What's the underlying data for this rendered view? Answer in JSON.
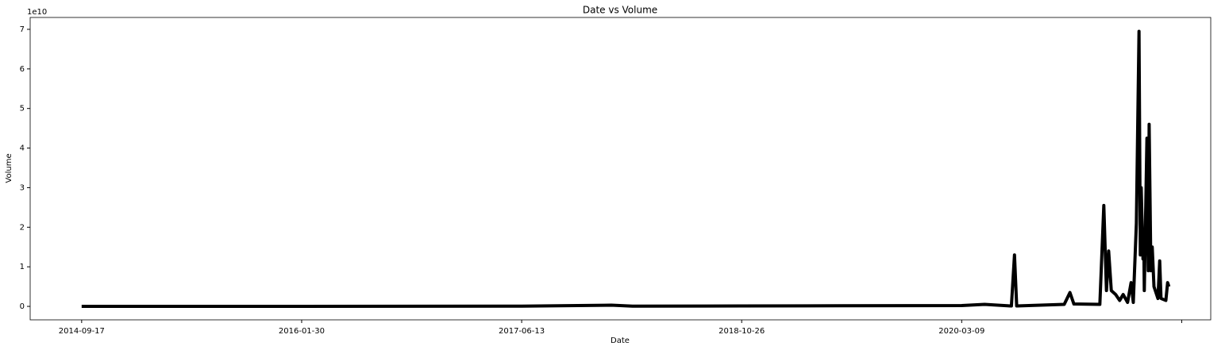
{
  "chart_data": {
    "type": "line",
    "title": "Date vs Volume",
    "xlabel": "Date",
    "ylabel": "Volume",
    "y_offset_label": "1e10",
    "x": [
      "2014-09-17",
      "2016-01-30",
      "2017-06-13",
      "2018-01-03",
      "2018-02-20",
      "2018-10-26",
      "2019-06-01",
      "2020-03-09",
      "2020-04-30",
      "2020-06-30",
      "2020-07-07",
      "2020-07-12",
      "2020-10-28",
      "2020-11-10",
      "2020-11-19",
      "2021-01-17",
      "2021-01-26",
      "2021-02-01",
      "2021-02-06",
      "2021-02-12",
      "2021-02-22",
      "2021-03-03",
      "2021-03-11",
      "2021-03-21",
      "2021-03-29",
      "2021-04-03",
      "2021-04-10",
      "2021-04-16",
      "2021-04-19",
      "2021-04-21",
      "2021-04-25",
      "2021-04-27",
      "2021-04-28",
      "2021-05-04",
      "2021-05-07",
      "2021-05-09",
      "2021-05-13",
      "2021-05-16",
      "2021-05-20",
      "2021-05-29",
      "2021-06-02",
      "2021-06-05",
      "2021-06-16",
      "2021-06-20",
      "2021-06-23"
    ],
    "series": [
      {
        "name": "Volume",
        "color": "#000000",
        "values": [
          10000000,
          20000000,
          50000000,
          300000000,
          50000000,
          100000000,
          150000000,
          200000000,
          500000000,
          100000000,
          13000000000,
          100000000,
          500000000,
          3500000000,
          600000000,
          500000000,
          25500000000,
          4000000000,
          14000000000,
          4000000000,
          3000000000,
          1500000000,
          3000000000,
          1000000000,
          6000000000,
          1000000000,
          21000000000,
          69500000000,
          13000000000,
          30000000000,
          12000000000,
          15000000000,
          4000000000,
          42500000000,
          9000000000,
          46000000000,
          9000000000,
          15000000000,
          5000000000,
          2000000000,
          11500000000,
          2000000000,
          1500000000,
          6000000000,
          5000000000
        ]
      }
    ],
    "xlim": [
      "2014-05-23",
      "2021-09-26"
    ],
    "xticks": [
      "2014-09-17",
      "2016-01-30",
      "2017-06-13",
      "2018-10-26",
      "2020-03-09",
      {
        "value": "2021-07-22",
        "label": null
      }
    ],
    "ylim": [
      -3400000000,
      73000000000
    ],
    "yticks": [
      0,
      {
        "value": 10000000000,
        "label": "1"
      },
      {
        "value": 20000000000,
        "label": "2"
      },
      {
        "value": 30000000000,
        "label": "3"
      },
      {
        "value": 40000000000,
        "label": "4"
      },
      {
        "value": 50000000000,
        "label": "5"
      },
      {
        "value": 60000000000,
        "label": "6"
      },
      {
        "value": 70000000000,
        "label": "7"
      }
    ],
    "grid": false
  }
}
